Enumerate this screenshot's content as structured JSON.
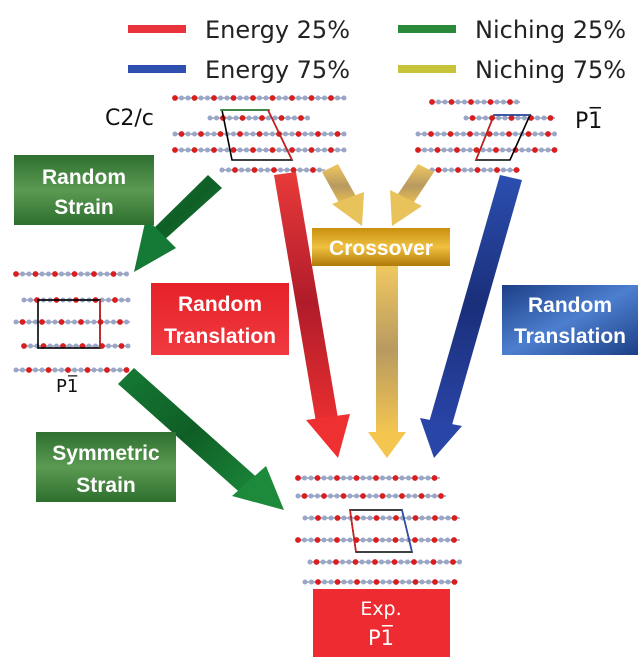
{
  "legend": [
    {
      "label": "Energy 25%",
      "color": "#e8323c"
    },
    {
      "label": "Energy 75%",
      "color": "#2c4fb0"
    },
    {
      "label": "Niching 25%",
      "color": "#2a8a3a"
    },
    {
      "label": "Niching 75%",
      "color": "#c8c43a"
    }
  ],
  "structures": {
    "top_left_label": "C2/c",
    "top_right_label": "P1̅",
    "middle_left_label": "P1̅"
  },
  "operations": {
    "random_strain": [
      "Random",
      "Strain"
    ],
    "crossover": "Crossover",
    "random_translation_red": [
      "Random",
      "Translation"
    ],
    "random_translation_blue": [
      "Random",
      "Translation"
    ],
    "symmetric_strain": [
      "Symmetric",
      "Strain"
    ],
    "result": [
      "Exp.",
      "P1̅"
    ]
  },
  "colors": {
    "red_box": "#ee2b31",
    "green_box": "#3e7d3a",
    "gold_box": "#d4a21a",
    "blue_box": "#2d5aa0",
    "arrow_green": "#1f7a3a",
    "arrow_red": "#e8323c",
    "arrow_blue": "#2a3f9a",
    "arrow_gold": "#e8c25a",
    "atom_red": "#d81e1e",
    "atom_gray": "#9aa6c8"
  }
}
